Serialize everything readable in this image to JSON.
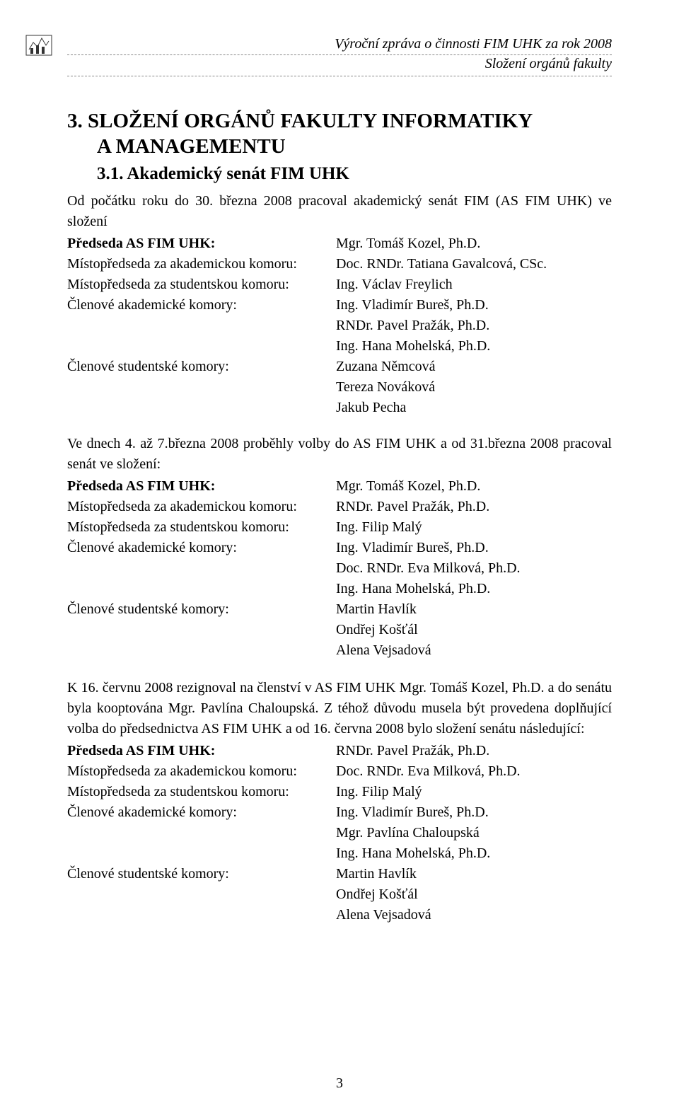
{
  "header": {
    "line1": "Výroční zpráva o činnosti FIM UHK za rok 2008",
    "line2": "Složení orgánů fakulty"
  },
  "headings": {
    "section_number": "3.",
    "section_title_line1": "SLOŽENÍ ORGÁNŮ FAKULTY INFORMATIKY",
    "section_title_line2": "A MANAGEMENTU",
    "subsection_number": "3.1.",
    "subsection_title": "Akademický senát FIM UHK"
  },
  "intro1": "Od počátku roku do 30. března 2008 pracoval akademický senát FIM (AS FIM UHK) ve složení",
  "roles1": [
    {
      "label": "Předseda AS FIM UHK:",
      "bold": true,
      "values": [
        "Mgr. Tomáš Kozel, Ph.D."
      ]
    },
    {
      "label": "Místopředseda za akademickou komoru:",
      "bold": false,
      "values": [
        "Doc. RNDr. Tatiana Gavalcová, CSc."
      ]
    },
    {
      "label": "Místopředseda za studentskou komoru:",
      "bold": false,
      "values": [
        "Ing. Václav Freylich"
      ]
    },
    {
      "label": "Členové akademické komory:",
      "bold": false,
      "values": [
        "Ing. Vladimír Bureš, Ph.D.",
        "RNDr. Pavel Pražák, Ph.D.",
        "Ing. Hana Mohelská, Ph.D."
      ]
    },
    {
      "label": "Členové studentské komory:",
      "bold": false,
      "values": [
        "Zuzana Němcová",
        "Tereza Nováková",
        "Jakub Pecha"
      ]
    }
  ],
  "intro2": "Ve dnech 4. až 7.března 2008 proběhly volby do AS FIM UHK a od 31.března 2008 pracoval senát ve složení:",
  "roles2": [
    {
      "label": "Předseda AS FIM UHK:",
      "bold": true,
      "values": [
        "Mgr. Tomáš Kozel, Ph.D."
      ]
    },
    {
      "label": "Místopředseda za akademickou komoru:",
      "bold": false,
      "values": [
        "RNDr. Pavel Pražák, Ph.D."
      ]
    },
    {
      "label": "Místopředseda za studentskou komoru:",
      "bold": false,
      "values": [
        "Ing. Filip Malý"
      ]
    },
    {
      "label": "Členové akademické komory:",
      "bold": false,
      "values": [
        "Ing. Vladimír Bureš, Ph.D.",
        "Doc. RNDr. Eva Milková, Ph.D.",
        "Ing. Hana Mohelská, Ph.D."
      ]
    },
    {
      "label": "Členové studentské komory:",
      "bold": false,
      "values": [
        "Martin Havlík",
        "Ondřej Košťál",
        "Alena Vejsadová"
      ]
    }
  ],
  "intro3": "K 16. červnu 2008 rezignoval na členství v AS FIM UHK Mgr. Tomáš Kozel, Ph.D. a do senátu byla kooptována Mgr. Pavlína Chaloupská. Z téhož důvodu musela být provedena doplňující volba do předsednictva AS FIM UHK a od 16. června 2008 bylo složení senátu následující:",
  "roles3": [
    {
      "label": "Předseda AS FIM UHK:",
      "bold": true,
      "values": [
        "RNDr. Pavel Pražák, Ph.D."
      ]
    },
    {
      "label": "Místopředseda za akademickou komoru:",
      "bold": false,
      "values": [
        "Doc. RNDr. Eva Milková, Ph.D."
      ]
    },
    {
      "label": "Místopředseda za studentskou komoru:",
      "bold": false,
      "values": [
        "Ing. Filip Malý"
      ]
    },
    {
      "label": "Členové akademické komory:",
      "bold": false,
      "values": [
        "Ing. Vladimír Bureš, Ph.D.",
        "Mgr. Pavlína Chaloupská",
        "Ing. Hana Mohelská, Ph.D."
      ]
    },
    {
      "label": "Členové studentské komory:",
      "bold": false,
      "values": [
        "Martin Havlík",
        "Ondřej Košťál",
        "Alena Vejsadová"
      ]
    }
  ],
  "page_number": "3"
}
